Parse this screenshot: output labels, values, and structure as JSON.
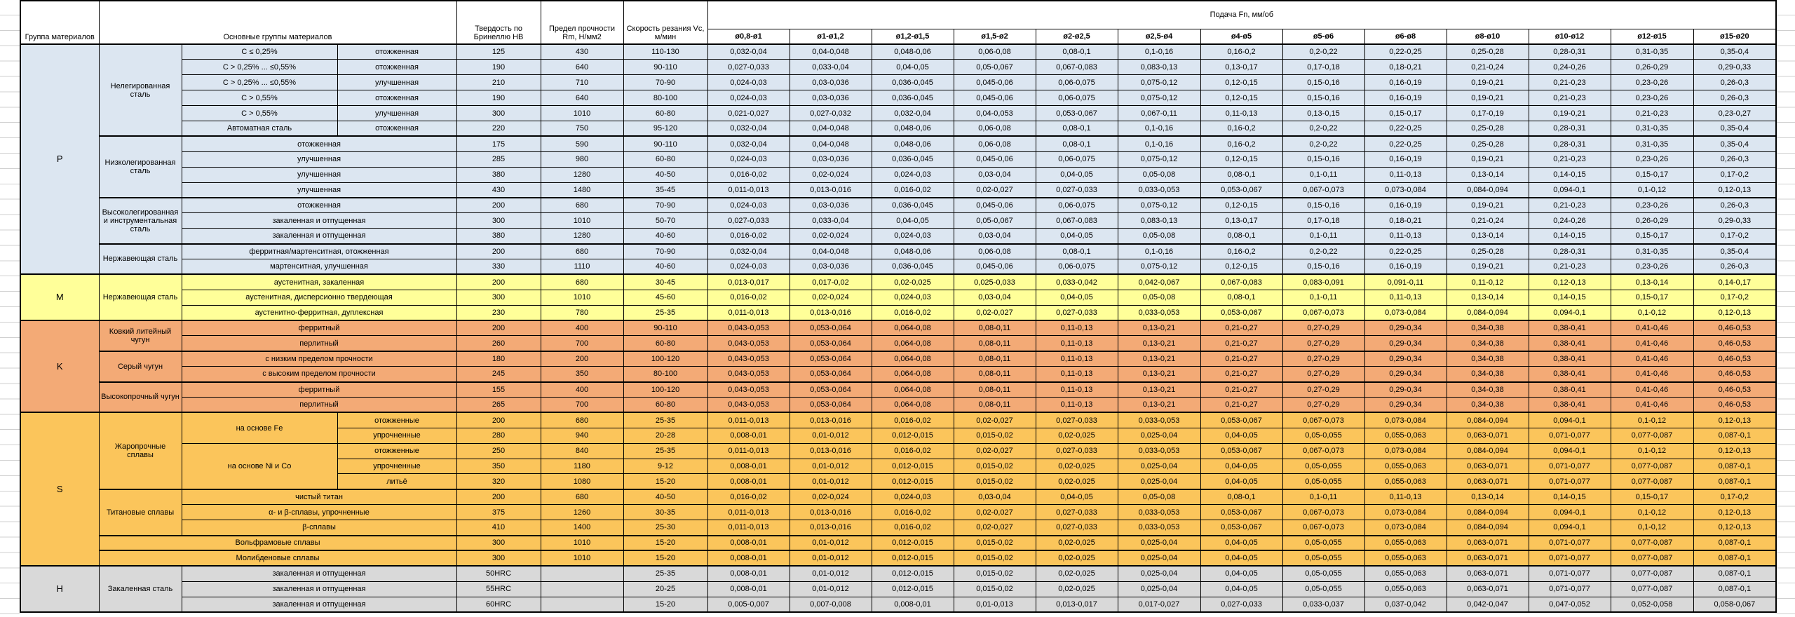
{
  "header": {
    "col_group": "Группа материалов",
    "col_main": "Основные группы материалов",
    "col_hb": "Твердость по Бринеллю HB",
    "col_rm": "Предел прочности Rm, Н/мм2",
    "col_vc": "Скорость резания Vc, м/мин",
    "col_feed": "Подача Fn, мм/об",
    "diameters": [
      "ø0,8-ø1",
      "ø1-ø1,2",
      "ø1,2-ø1,5",
      "ø1,5-ø2",
      "ø2-ø2,5",
      "ø2,5-ø4",
      "ø4-ø5",
      "ø5-ø6",
      "ø6-ø8",
      "ø8-ø10",
      "ø10-ø12",
      "ø12-ø15",
      "ø15-ø20"
    ]
  },
  "colors": {
    "P": "#dce6f1",
    "M": "#ffff99",
    "K": "#f3aa76",
    "S": "#fbc55b",
    "H": "#d9d9d9",
    "border": "#000000",
    "gridline": "#cfcfcf"
  },
  "feed_series": {
    "A": [
      "0,032-0,04",
      "0,04-0,048",
      "0,048-0,06",
      "0,06-0,08",
      "0,08-0,1",
      "0,1-0,16",
      "0,16-0,2",
      "0,2-0,22",
      "0,22-0,25",
      "0,25-0,28",
      "0,28-0,31",
      "0,31-0,35",
      "0,35-0,4"
    ],
    "B": [
      "0,027-0,033",
      "0,033-0,04",
      "0,04-0,05",
      "0,05-0,067",
      "0,067-0,083",
      "0,083-0,13",
      "0,13-0,17",
      "0,17-0,18",
      "0,18-0,21",
      "0,21-0,24",
      "0,24-0,26",
      "0,26-0,29",
      "0,29-0,33"
    ],
    "C": [
      "0,024-0,03",
      "0,03-0,036",
      "0,036-0,045",
      "0,045-0,06",
      "0,06-0,075",
      "0,075-0,12",
      "0,12-0,15",
      "0,15-0,16",
      "0,16-0,19",
      "0,19-0,21",
      "0,21-0,23",
      "0,23-0,26",
      "0,26-0,3"
    ],
    "D": [
      "0,021-0,027",
      "0,027-0,032",
      "0,032-0,04",
      "0,04-0,053",
      "0,053-0,067",
      "0,067-0,11",
      "0,11-0,13",
      "0,13-0,15",
      "0,15-0,17",
      "0,17-0,19",
      "0,19-0,21",
      "0,21-0,23",
      "0,23-0,27"
    ],
    "E": [
      "0,016-0,02",
      "0,02-0,024",
      "0,024-0,03",
      "0,03-0,04",
      "0,04-0,05",
      "0,05-0,08",
      "0,08-0,1",
      "0,1-0,11",
      "0,11-0,13",
      "0,13-0,14",
      "0,14-0,15",
      "0,15-0,17",
      "0,17-0,2"
    ],
    "F": [
      "0,011-0,013",
      "0,013-0,016",
      "0,016-0,02",
      "0,02-0,027",
      "0,027-0,033",
      "0,033-0,053",
      "0,053-0,067",
      "0,067-0,073",
      "0,073-0,084",
      "0,084-0,094",
      "0,094-0,1",
      "0,1-0,12",
      "0,12-0,13"
    ],
    "G": [
      "0,013-0,017",
      "0,017-0,02",
      "0,02-0,025",
      "0,025-0,033",
      "0,033-0,042",
      "0,042-0,067",
      "0,067-0,083",
      "0,083-0,091",
      "0,091-0,11",
      "0,11-0,12",
      "0,12-0,13",
      "0,13-0,14",
      "0,14-0,17"
    ],
    "KC": [
      "0,043-0,053",
      "0,053-0,064",
      "0,064-0,08",
      "0,08-0,11",
      "0,11-0,13",
      "0,13-0,21",
      "0,21-0,27",
      "0,27-0,29",
      "0,29-0,34",
      "0,34-0,38",
      "0,38-0,41",
      "0,41-0,46",
      "0,46-0,53"
    ],
    "HD": [
      "0,008-0,01",
      "0,01-0,012",
      "0,012-0,015",
      "0,015-0,02",
      "0,02-0,025",
      "0,025-0,04",
      "0,04-0,05",
      "0,05-0,055",
      "0,055-0,063",
      "0,063-0,071",
      "0,071-0,077",
      "0,077-0,087",
      "0,087-0,1"
    ],
    "ID": [
      "0,005-0,007",
      "0,007-0,008",
      "0,008-0,01",
      "0,01-0,013",
      "0,013-0,017",
      "0,017-0,027",
      "0,027-0,033",
      "0,033-0,037",
      "0,037-0,042",
      "0,042-0,047",
      "0,047-0,052",
      "0,052-0,058",
      "0,058-0,067"
    ]
  },
  "groups": [
    {
      "id": "P",
      "letter": "P",
      "blocks": [
        {
          "name": "Нелегированная сталь",
          "rows": [
            {
              "sub1": "C ≤ 0,25%",
              "sub2": "отожженная",
              "hb": "125",
              "rm": "430",
              "vc": "110-130",
              "series": "A"
            },
            {
              "sub1": "C > 0,25% ... ≤0,55%",
              "sub2": "отожженная",
              "hb": "190",
              "rm": "640",
              "vc": "90-110",
              "series": "B"
            },
            {
              "sub1": "C > 0,25% ... ≤0,55%",
              "sub2": "улучшенная",
              "hb": "210",
              "rm": "710",
              "vc": "70-90",
              "series": "C"
            },
            {
              "sub1": "C > 0,55%",
              "sub2": "отожженная",
              "hb": "190",
              "rm": "640",
              "vc": "80-100",
              "series": "C"
            },
            {
              "sub1": "C > 0,55%",
              "sub2": "улучшенная",
              "hb": "300",
              "rm": "1010",
              "vc": "60-80",
              "series": "D"
            },
            {
              "sub1": "Автоматная сталь",
              "sub2": "отожженная",
              "hb": "220",
              "rm": "750",
              "vc": "95-120",
              "series": "A"
            }
          ]
        },
        {
          "name": "Низколегированная сталь",
          "rows": [
            {
              "sub": "отожженная",
              "hb": "175",
              "rm": "590",
              "vc": "90-110",
              "series": "A"
            },
            {
              "sub": "улучшенная",
              "hb": "285",
              "rm": "980",
              "vc": "60-80",
              "series": "C"
            },
            {
              "sub": "улучшенная",
              "hb": "380",
              "rm": "1280",
              "vc": "40-50",
              "series": "E"
            },
            {
              "sub": "улучшенная",
              "hb": "430",
              "rm": "1480",
              "vc": "35-45",
              "series": "F"
            }
          ]
        },
        {
          "name": "Высоколегированная и инструментальная сталь",
          "rows": [
            {
              "sub": "отожженная",
              "hb": "200",
              "rm": "680",
              "vc": "70-90",
              "series": "C"
            },
            {
              "sub": "закаленная и отпущенная",
              "hb": "300",
              "rm": "1010",
              "vc": "50-70",
              "series": "B"
            },
            {
              "sub": "закаленная и отпущенная",
              "hb": "380",
              "rm": "1280",
              "vc": "40-60",
              "series": "E"
            }
          ]
        },
        {
          "name": "Нержавеющая сталь",
          "rows": [
            {
              "sub": "ферритная/мартенситная, отожженная",
              "hb": "200",
              "rm": "680",
              "vc": "70-90",
              "series": "A"
            },
            {
              "sub": "мартенситная, улучшенная",
              "hb": "330",
              "rm": "1110",
              "vc": "40-60",
              "series": "C"
            }
          ]
        }
      ]
    },
    {
      "id": "M",
      "letter": "M",
      "blocks": [
        {
          "name": "Нержавеющая сталь",
          "rows": [
            {
              "sub": "аустенитная, закаленная",
              "hb": "200",
              "rm": "680",
              "vc": "30-45",
              "series": "G"
            },
            {
              "sub": "аустенитная, дисперсионно твердеющая",
              "hb": "300",
              "rm": "1010",
              "vc": "45-60",
              "series": "E"
            },
            {
              "sub": "аустенитно-ферритная, дуплексная",
              "hb": "230",
              "rm": "780",
              "vc": "25-35",
              "series": "F"
            }
          ]
        }
      ]
    },
    {
      "id": "K",
      "letter": "K",
      "blocks": [
        {
          "name": "Ковкий литейный чугун",
          "rows": [
            {
              "sub": "ферритный",
              "hb": "200",
              "rm": "400",
              "vc": "90-110",
              "series": "KC"
            },
            {
              "sub": "перлитный",
              "hb": "260",
              "rm": "700",
              "vc": "60-80",
              "series": "KC"
            }
          ]
        },
        {
          "name": "Серый чугун",
          "rows": [
            {
              "sub": "с низким пределом прочности",
              "hb": "180",
              "rm": "200",
              "vc": "100-120",
              "series": "KC"
            },
            {
              "sub": "с высоким пределом прочности",
              "hb": "245",
              "rm": "350",
              "vc": "80-100",
              "series": "KC"
            }
          ]
        },
        {
          "name": "Высокопрочный чугун",
          "rows": [
            {
              "sub": "ферритный",
              "hb": "155",
              "rm": "400",
              "vc": "100-120",
              "series": "KC"
            },
            {
              "sub": "перлитный",
              "hb": "265",
              "rm": "700",
              "vc": "60-80",
              "series": "KC"
            }
          ]
        }
      ]
    },
    {
      "id": "S",
      "letter": "S",
      "blocks": [
        {
          "name": "Жаропрочные сплавы",
          "rows": [
            {
              "sub1": "на основе Fe",
              "sub1span": 2,
              "sub2": "отожженные",
              "hb": "200",
              "rm": "680",
              "vc": "25-35",
              "series": "F"
            },
            {
              "sub2": "упрочненные",
              "hb": "280",
              "rm": "940",
              "vc": "20-28",
              "series": "HD"
            },
            {
              "sub1": "на основе Ni и Co",
              "sub1span": 3,
              "sub2": "отожженные",
              "hb": "250",
              "rm": "840",
              "vc": "25-35",
              "series": "F"
            },
            {
              "sub2": "упрочненные",
              "hb": "350",
              "rm": "1180",
              "vc": "9-12",
              "series": "HD"
            },
            {
              "sub2": "литьё",
              "hb": "320",
              "rm": "1080",
              "vc": "15-20",
              "series": "HD"
            }
          ]
        },
        {
          "name": "Титановые сплавы",
          "rows": [
            {
              "sub": "чистый титан",
              "hb": "200",
              "rm": "680",
              "vc": "40-50",
              "series": "E"
            },
            {
              "sub": "α- и β-сплавы, упрочненные",
              "hb": "375",
              "rm": "1260",
              "vc": "30-35",
              "series": "F"
            },
            {
              "sub": "β-сплавы",
              "hb": "410",
              "rm": "1400",
              "vc": "25-30",
              "series": "F"
            }
          ]
        },
        {
          "name": null,
          "rows": [
            {
              "full": "Вольфрамовые сплавы",
              "hb": "300",
              "rm": "1010",
              "vc": "15-20",
              "series": "HD"
            }
          ]
        },
        {
          "name": null,
          "rows": [
            {
              "full": "Молибденовые сплавы",
              "hb": "300",
              "rm": "1010",
              "vc": "15-20",
              "series": "HD"
            }
          ]
        }
      ]
    },
    {
      "id": "H",
      "letter": "H",
      "blocks": [
        {
          "name": "Закаленная сталь",
          "rows": [
            {
              "sub": "закаленная и отпущенная",
              "hb": "50HRC",
              "rm": "",
              "vc": "25-35",
              "series": "HD"
            },
            {
              "sub": "закаленная и отпущенная",
              "hb": "55HRC",
              "rm": "",
              "vc": "20-25",
              "series": "HD"
            },
            {
              "sub": "закаленная и отпущенная",
              "hb": "60HRC",
              "rm": "",
              "vc": "15-20",
              "series": "ID"
            }
          ]
        }
      ]
    }
  ]
}
